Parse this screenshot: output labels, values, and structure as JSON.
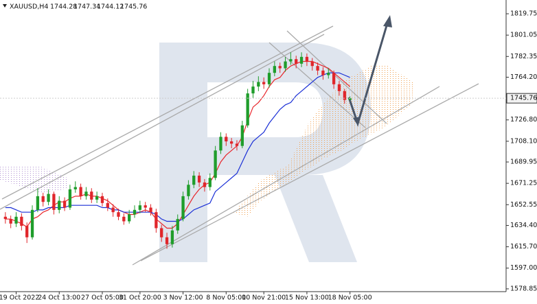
{
  "chart_data": {
    "type": "candlestick",
    "title": "XAUUSD,H4",
    "x": [
      0,
      1,
      2,
      3,
      4,
      5,
      6,
      7,
      8,
      9,
      10,
      11,
      12,
      13,
      14,
      15,
      16,
      17,
      18,
      19,
      20,
      21,
      22,
      23,
      24,
      25,
      26,
      27,
      28,
      29,
      30,
      31,
      32,
      33,
      34,
      35,
      36,
      37,
      38,
      39,
      40,
      41,
      42,
      43,
      44,
      45,
      46,
      47,
      48,
      49,
      50,
      51,
      52,
      53,
      54,
      55,
      56,
      57,
      58,
      59,
      60,
      61,
      62,
      63,
      64
    ],
    "open": [
      1642,
      1640,
      1636,
      1642,
      1634,
      1624,
      1648,
      1660,
      1655,
      1662,
      1648,
      1656,
      1650,
      1666,
      1668,
      1660,
      1664,
      1657,
      1660,
      1654,
      1650,
      1646,
      1642,
      1638,
      1644,
      1648,
      1652,
      1650,
      1646,
      1632,
      1624,
      1618,
      1630,
      1640,
      1660,
      1670,
      1678,
      1672,
      1668,
      1676,
      1700,
      1712,
      1708,
      1706,
      1704,
      1722,
      1750,
      1756,
      1760,
      1758,
      1768,
      1774,
      1772,
      1778,
      1780,
      1776,
      1782,
      1778,
      1774,
      1770,
      1766,
      1768,
      1758,
      1752,
      1744.28
    ],
    "high": [
      1646,
      1643,
      1646,
      1645,
      1637,
      1652,
      1667,
      1663,
      1666,
      1664,
      1660,
      1659,
      1670,
      1673,
      1671,
      1668,
      1667,
      1664,
      1663,
      1658,
      1653,
      1649,
      1645,
      1648,
      1652,
      1656,
      1655,
      1653,
      1649,
      1635,
      1628,
      1634,
      1644,
      1664,
      1674,
      1682,
      1681,
      1675,
      1680,
      1704,
      1716,
      1715,
      1711,
      1709,
      1726,
      1754,
      1761,
      1765,
      1764,
      1772,
      1778,
      1777,
      1782,
      1786,
      1783,
      1786,
      1785,
      1781,
      1777,
      1773,
      1772,
      1770,
      1761,
      1754,
      1747.34
    ],
    "low": [
      1636,
      1632,
      1633,
      1630,
      1619,
      1622,
      1646,
      1651,
      1652,
      1644,
      1645,
      1647,
      1648,
      1663,
      1657,
      1657,
      1654,
      1654,
      1651,
      1647,
      1642,
      1639,
      1635,
      1636,
      1641,
      1645,
      1646,
      1643,
      1628,
      1620,
      1614,
      1615,
      1627,
      1638,
      1657,
      1667,
      1668,
      1664,
      1665,
      1674,
      1697,
      1704,
      1702,
      1700,
      1702,
      1720,
      1746,
      1752,
      1754,
      1755,
      1765,
      1768,
      1769,
      1775,
      1772,
      1773,
      1774,
      1770,
      1766,
      1762,
      1763,
      1754,
      1748,
      1741,
      1744.12
    ],
    "close": [
      1640,
      1636,
      1642,
      1634,
      1624,
      1648,
      1660,
      1655,
      1662,
      1648,
      1656,
      1650,
      1666,
      1668,
      1660,
      1664,
      1657,
      1660,
      1654,
      1650,
      1646,
      1642,
      1638,
      1644,
      1648,
      1652,
      1650,
      1646,
      1632,
      1624,
      1618,
      1630,
      1640,
      1660,
      1670,
      1678,
      1672,
      1668,
      1676,
      1700,
      1712,
      1708,
      1706,
      1704,
      1722,
      1750,
      1756,
      1760,
      1758,
      1768,
      1774,
      1772,
      1778,
      1780,
      1776,
      1782,
      1778,
      1774,
      1770,
      1766,
      1768,
      1758,
      1752,
      1744.28,
      1745.76
    ],
    "up_color": "#1f9d2b",
    "down_color": "#e0262b",
    "overlays": [
      {
        "color": "#e8262b",
        "values": [
          1640,
          1640,
          1638,
          1636,
          1633,
          1640,
          1642,
          1646,
          1648,
          1652,
          1655,
          1655,
          1658,
          1660,
          1660,
          1662,
          1660,
          1660,
          1658,
          1656,
          1652,
          1648,
          1646,
          1644,
          1644,
          1646,
          1648,
          1646,
          1640,
          1636,
          1632,
          1632,
          1636,
          1644,
          1652,
          1660,
          1666,
          1670,
          1672,
          1680,
          1690,
          1696,
          1700,
          1704,
          1712,
          1726,
          1738,
          1742,
          1748,
          1756,
          1762,
          1764,
          1770,
          1774,
          1776,
          1778,
          1778,
          1778,
          1776,
          1774,
          1772,
          1768,
          1764,
          1760,
          1756
        ]
      },
      {
        "color": "#1a2fd6",
        "values": [
          1650,
          1650,
          1648,
          1646,
          1646,
          1646,
          1648,
          1648,
          1650,
          1650,
          1650,
          1650,
          1652,
          1652,
          1652,
          1652,
          1652,
          1652,
          1650,
          1650,
          1648,
          1648,
          1646,
          1646,
          1646,
          1646,
          1646,
          1646,
          1644,
          1640,
          1638,
          1638,
          1638,
          1640,
          1644,
          1648,
          1650,
          1652,
          1654,
          1664,
          1668,
          1672,
          1676,
          1680,
          1690,
          1700,
          1708,
          1712,
          1716,
          1724,
          1730,
          1736,
          1740,
          1742,
          1748,
          1752,
          1756,
          1760,
          1764,
          1766,
          1768,
          1768,
          1768,
          1766,
          1764
        ]
      }
    ],
    "xlim": [
      -1,
      93
    ],
    "xticks": [
      {
        "value": 2,
        "label": "19 Oct 2022"
      },
      {
        "value": 10,
        "label": "24 Oct 13:00"
      },
      {
        "value": 18,
        "label": "27 Oct 05:00"
      },
      {
        "value": 25,
        "label": "31 Oct 20:00"
      },
      {
        "value": 33,
        "label": "3 Nov 12:00"
      },
      {
        "value": 41,
        "label": "8 Nov 05:00"
      },
      {
        "value": 48,
        "label": "10 Nov 21:00"
      },
      {
        "value": 56,
        "label": "15 Nov 13:00"
      },
      {
        "value": 64,
        "label": "18 Nov 05:00"
      }
    ],
    "ylim": [
      1576.4,
      1831.8
    ],
    "yticks": [
      1819.75,
      1801.05,
      1782.35,
      {
        "value": 1764.2,
        "label": "1764.20"
      },
      {
        "value": 1726.8,
        "label": "1726.80"
      },
      {
        "value": 1708.1,
        "label": "1708.10"
      },
      1689.95,
      1671.25,
      1652.55,
      {
        "value": 1634.4,
        "label": "1634.40"
      },
      {
        "value": 1615.7,
        "label": "1615.70"
      },
      {
        "value": 1597,
        "label": "1597.00"
      },
      1578.85
    ]
  }
}
